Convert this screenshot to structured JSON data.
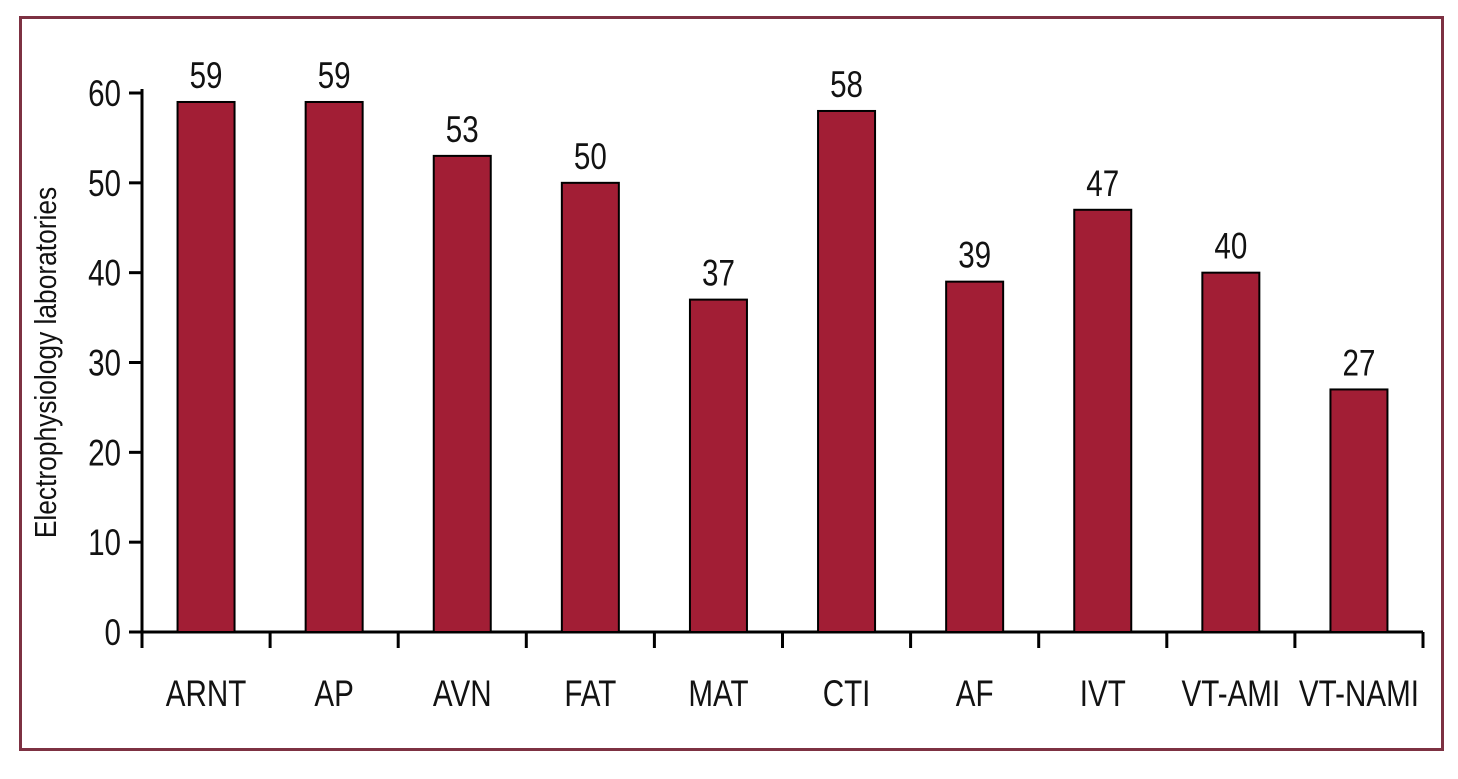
{
  "chart_data": {
    "type": "bar",
    "title": "",
    "xlabel": "",
    "ylabel": "Electrophysiology laboratories",
    "categories": [
      "ARNT",
      "AP",
      "AVN",
      "FAT",
      "MAT",
      "CTI",
      "AF",
      "IVT",
      "VT-AMI",
      "VT-NAMI"
    ],
    "values": [
      59,
      59,
      53,
      50,
      37,
      58,
      39,
      47,
      40,
      27
    ],
    "value_labels": [
      "59",
      "59",
      "53",
      "50",
      "37",
      "58",
      "39",
      "47",
      "40",
      "27"
    ],
    "yticks": [
      0,
      10,
      20,
      30,
      40,
      50,
      60
    ],
    "ylim": [
      0,
      60
    ],
    "grid": false,
    "legend": false,
    "colors": {
      "bar_fill": "#A21E35",
      "bar_stroke": "#000000",
      "axis": "#000000",
      "text": "#121212",
      "frame_border": "#7D3142",
      "background": "#FFFFFF"
    }
  }
}
